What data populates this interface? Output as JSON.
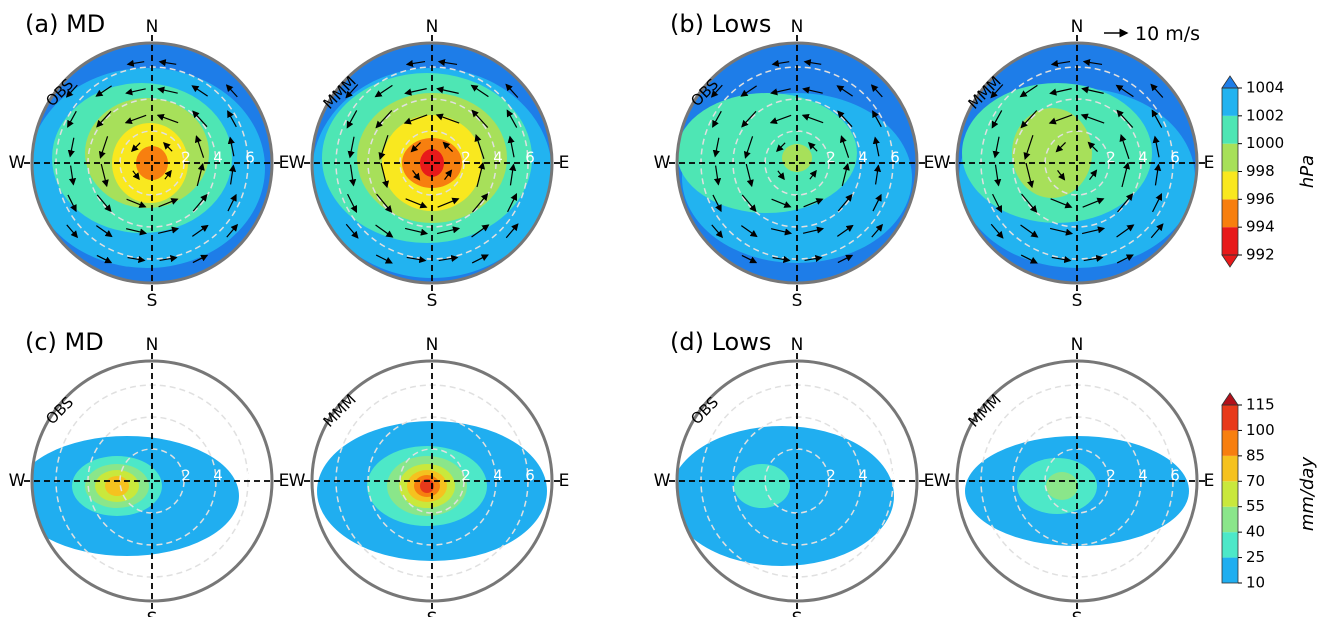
{
  "chart_data": [
    {
      "type": "polar-contour",
      "title": "(a) MD",
      "subplots": [
        "OBS",
        "MMM"
      ],
      "directions": {
        "N": "N",
        "S": "S",
        "W": "W",
        "E": "E"
      },
      "rlim": [
        0,
        7.5
      ],
      "rticks": [
        2,
        4,
        6
      ]
    },
    {
      "type": "polar-contour",
      "title": "(b) Lows",
      "subplots": [
        "OBS",
        "MMM"
      ],
      "directions": {
        "N": "N",
        "S": "S",
        "W": "W",
        "E": "E"
      },
      "rlim": [
        0,
        7.5
      ],
      "rticks": [
        2,
        4,
        6
      ],
      "vector_key": "10 m/s",
      "colorbar": {
        "label": "hPa",
        "lim": [
          992,
          1004
        ],
        "ticks": [
          992,
          994,
          996,
          998,
          1000,
          1002,
          1004
        ],
        "colors": [
          "#e8191a",
          "#f77f0f",
          "#f9e81f",
          "#a7e05a",
          "#4ee6b4",
          "#22b3f0"
        ],
        "under_color": "#e8191a",
        "over_color": "#1e7de8"
      }
    },
    {
      "type": "polar-contour",
      "title": "(c) MD",
      "subplots": [
        "OBS",
        "MMM"
      ],
      "directions": {
        "N": "N",
        "S": "S",
        "W": "W",
        "E": "E"
      },
      "rlim": [
        0,
        7.5
      ],
      "rticks": [
        2,
        4,
        6
      ]
    },
    {
      "type": "polar-contour",
      "title": "(d) Lows",
      "subplots": [
        "OBS",
        "MMM"
      ],
      "directions": {
        "N": "N",
        "S": "S",
        "W": "W",
        "E": "E"
      },
      "rlim": [
        0,
        7.5
      ],
      "rticks": [
        2,
        4,
        6
      ],
      "colorbar": {
        "label": "mm/day",
        "lim": [
          10,
          115
        ],
        "ticks": [
          10,
          25,
          40,
          55,
          70,
          85,
          100,
          115
        ],
        "colors": [
          "#20aef0",
          "#4de8c8",
          "#8ae68a",
          "#c9e83c",
          "#f5c21f",
          "#f77f0f",
          "#e8391a"
        ],
        "over_color": "#b2101a"
      }
    }
  ]
}
